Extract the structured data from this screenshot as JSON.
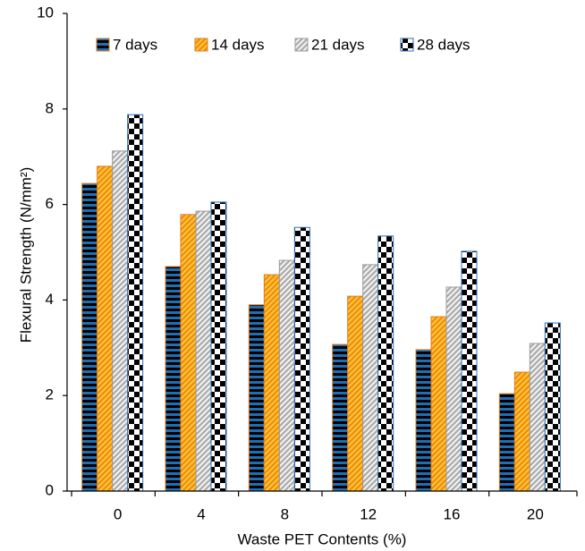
{
  "chart_data": {
    "type": "bar",
    "x_label": "Waste PET Contents (%)",
    "y_label": "Flexural Strength (N/mm²)",
    "categories": [
      "0",
      "4",
      "8",
      "12",
      "16",
      "20"
    ],
    "series": [
      {
        "name": "7 days",
        "color": "#1f6fb5",
        "values": [
          6.44,
          4.7,
          3.9,
          3.07,
          2.96,
          2.04
        ]
      },
      {
        "name": "14 days",
        "color": "#f08a24",
        "values": [
          6.8,
          5.79,
          4.53,
          4.08,
          3.65,
          2.49
        ]
      },
      {
        "name": "21 days",
        "color": "#b0b0b0",
        "values": [
          7.12,
          5.86,
          4.83,
          4.74,
          4.27,
          3.09
        ]
      },
      {
        "name": "28 days",
        "color": "#000000",
        "values": [
          7.88,
          6.05,
          5.52,
          5.34,
          5.02,
          3.52
        ]
      }
    ],
    "ylim": [
      0,
      10
    ],
    "yticks": [
      0,
      2,
      4,
      6,
      8,
      10
    ],
    "grid": false
  }
}
